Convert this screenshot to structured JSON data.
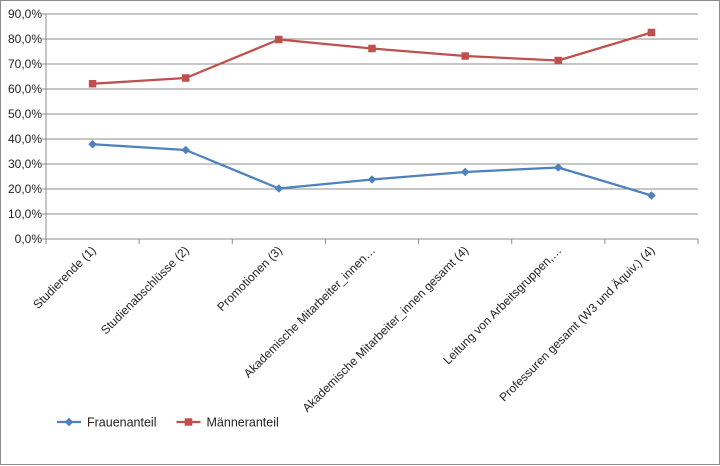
{
  "chart_data": {
    "type": "line",
    "categories": [
      "Studierende (1)",
      "Studienabschlüsse (2)",
      "Promotionen (3)",
      "Akademische Mitarbeiter_innen…",
      "Akademische Mitarbeiter_innen gesamt (4)",
      "Leitung von Arbeitsgruppen,…",
      "Professuren gesamt (W3 und Äquiv.) (4)"
    ],
    "series": [
      {
        "name": "Frauenanteil",
        "color": "#4f81bd",
        "marker": "diamond",
        "values": [
          37.9,
          35.6,
          20.2,
          23.8,
          26.8,
          28.6,
          17.4
        ]
      },
      {
        "name": "Männeranteil",
        "color": "#c0504d",
        "marker": "square",
        "values": [
          62.1,
          64.4,
          79.8,
          76.2,
          73.2,
          71.4,
          82.6
        ]
      }
    ],
    "ylim": [
      0,
      90
    ],
    "yticks": [
      "0,0%",
      "10,0%",
      "20,0%",
      "30,0%",
      "40,0%",
      "50,0%",
      "60,0%",
      "70,0%",
      "80,0%",
      "90,0%"
    ],
    "grid": true,
    "legend": "bottom-left"
  }
}
